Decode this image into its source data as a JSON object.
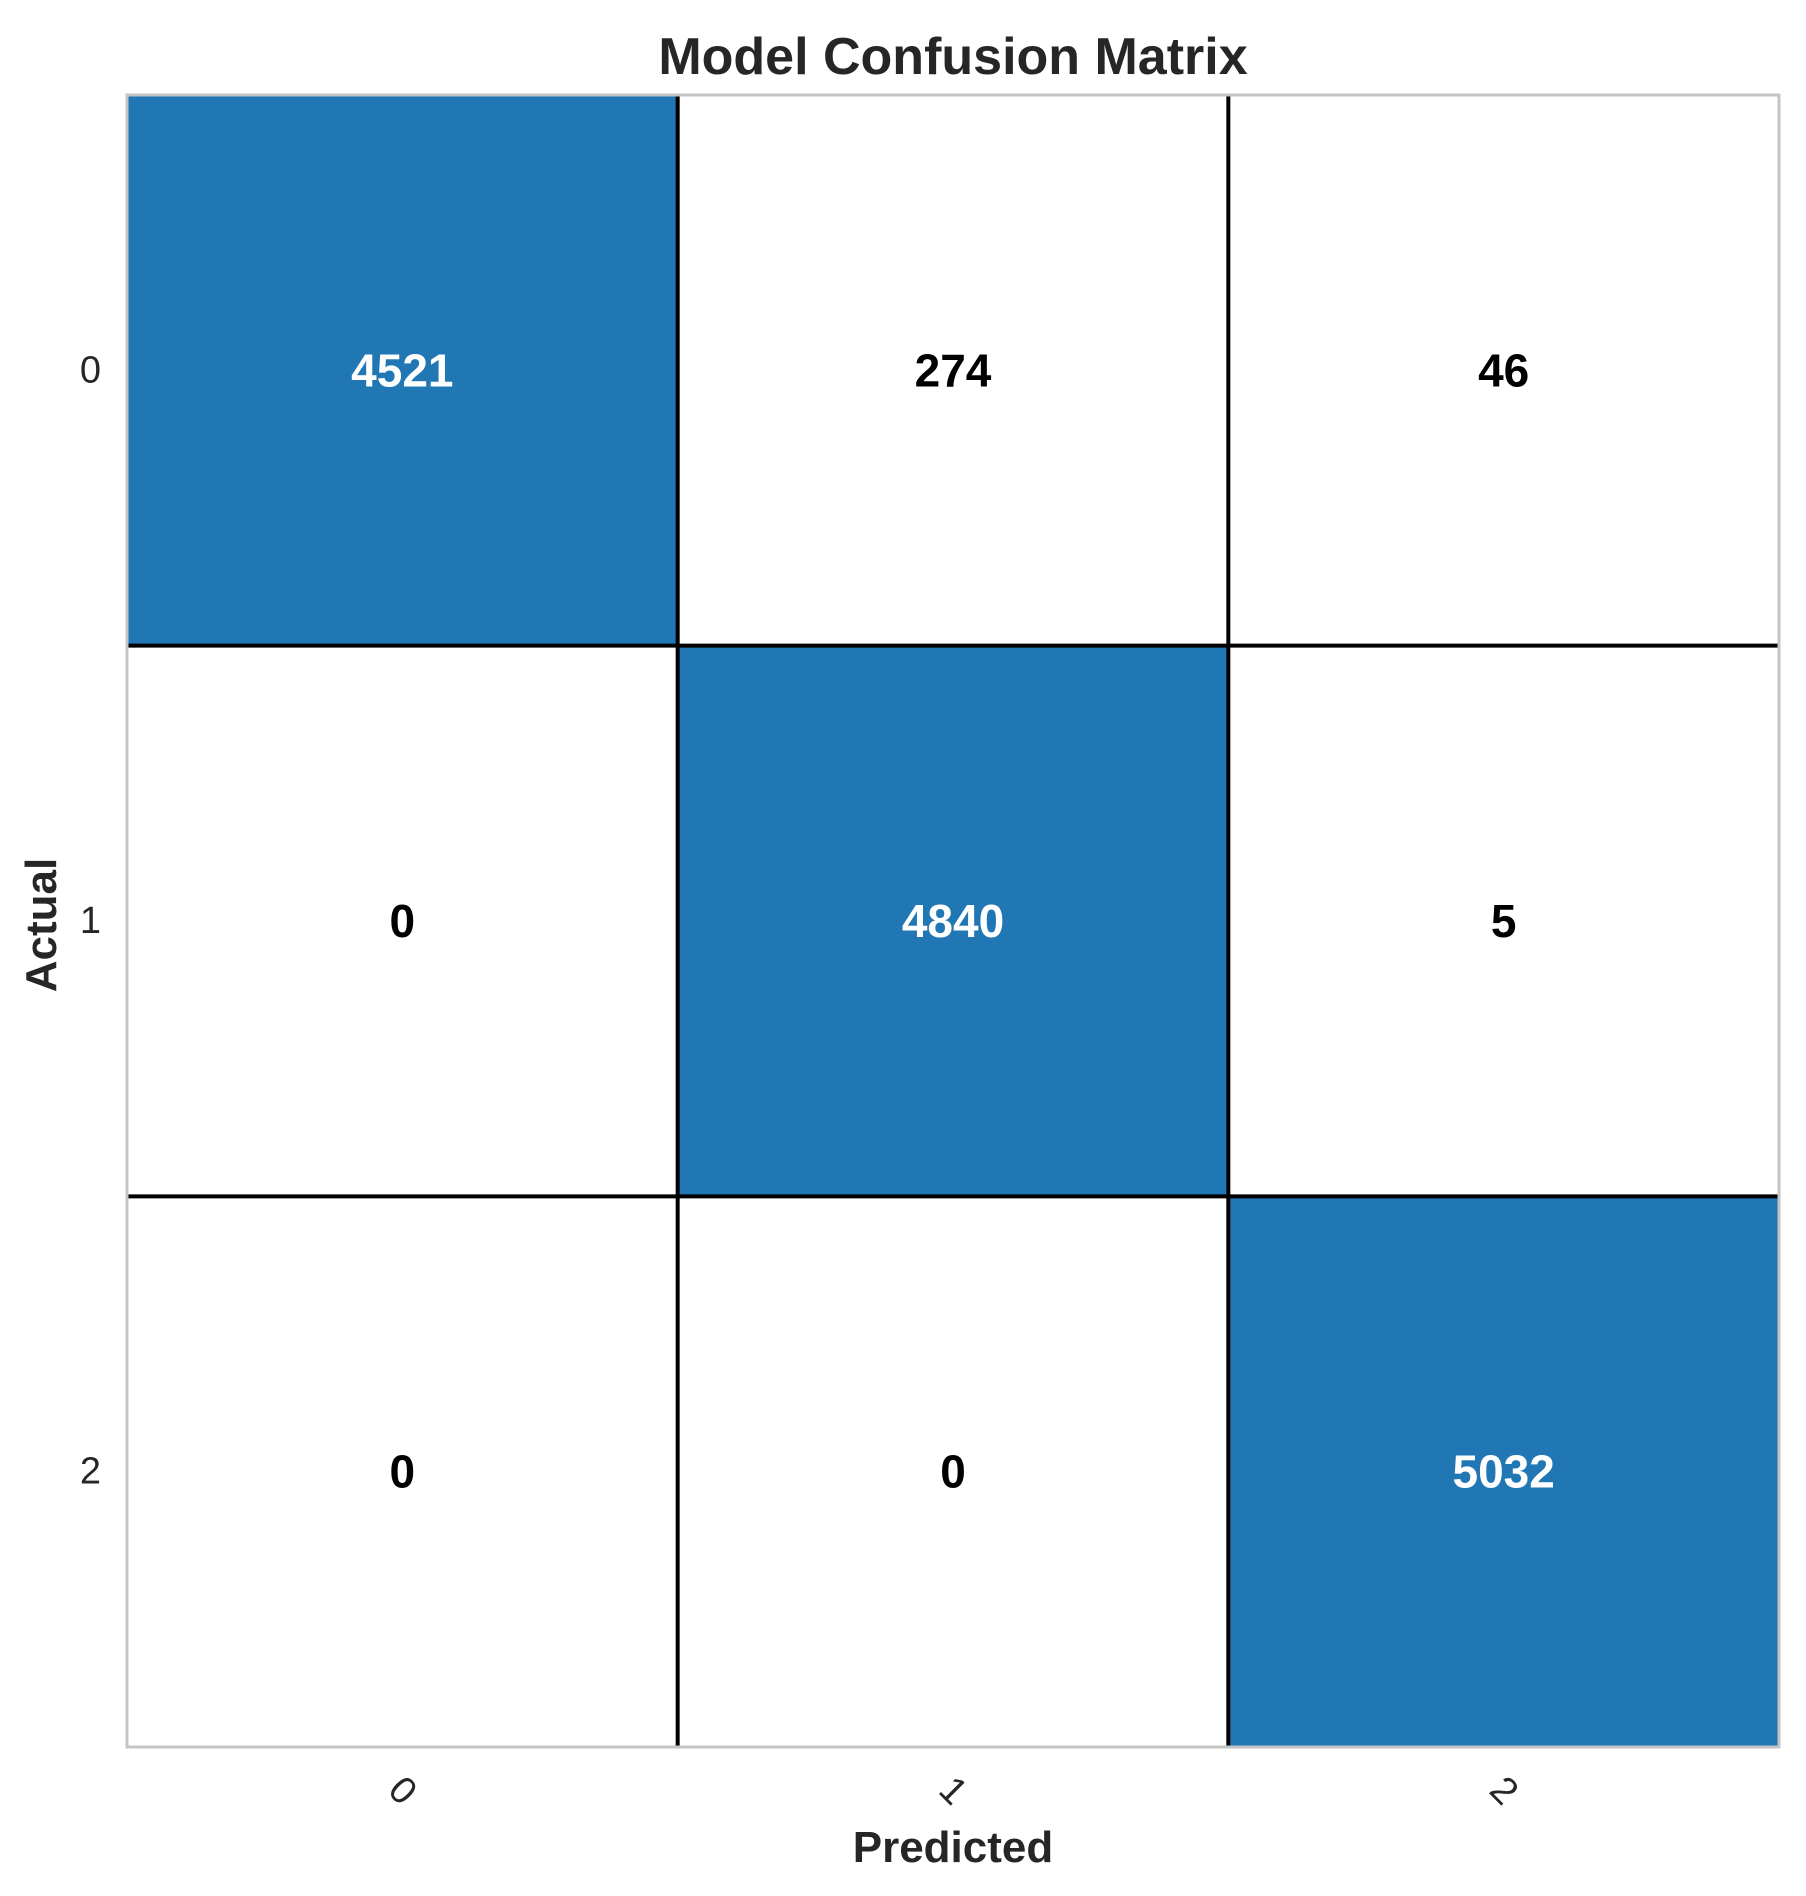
{
  "chart_data": {
    "type": "heatmap",
    "title": "Model Confusion Matrix",
    "xlabel": "Predicted",
    "ylabel": "Actual",
    "x_categories": [
      "0",
      "1",
      "2"
    ],
    "y_categories": [
      "0",
      "1",
      "2"
    ],
    "values": [
      [
        4521,
        274,
        46
      ],
      [
        0,
        4840,
        5
      ],
      [
        0,
        0,
        5032
      ]
    ],
    "grid": false,
    "colors": {
      "highlight": "#2176b4",
      "background": "#ffffff",
      "cell_border": "#000000",
      "frame": "#c4c4c4",
      "text_on_highlight": "#ffffff",
      "text_on_background": "#000000"
    }
  }
}
